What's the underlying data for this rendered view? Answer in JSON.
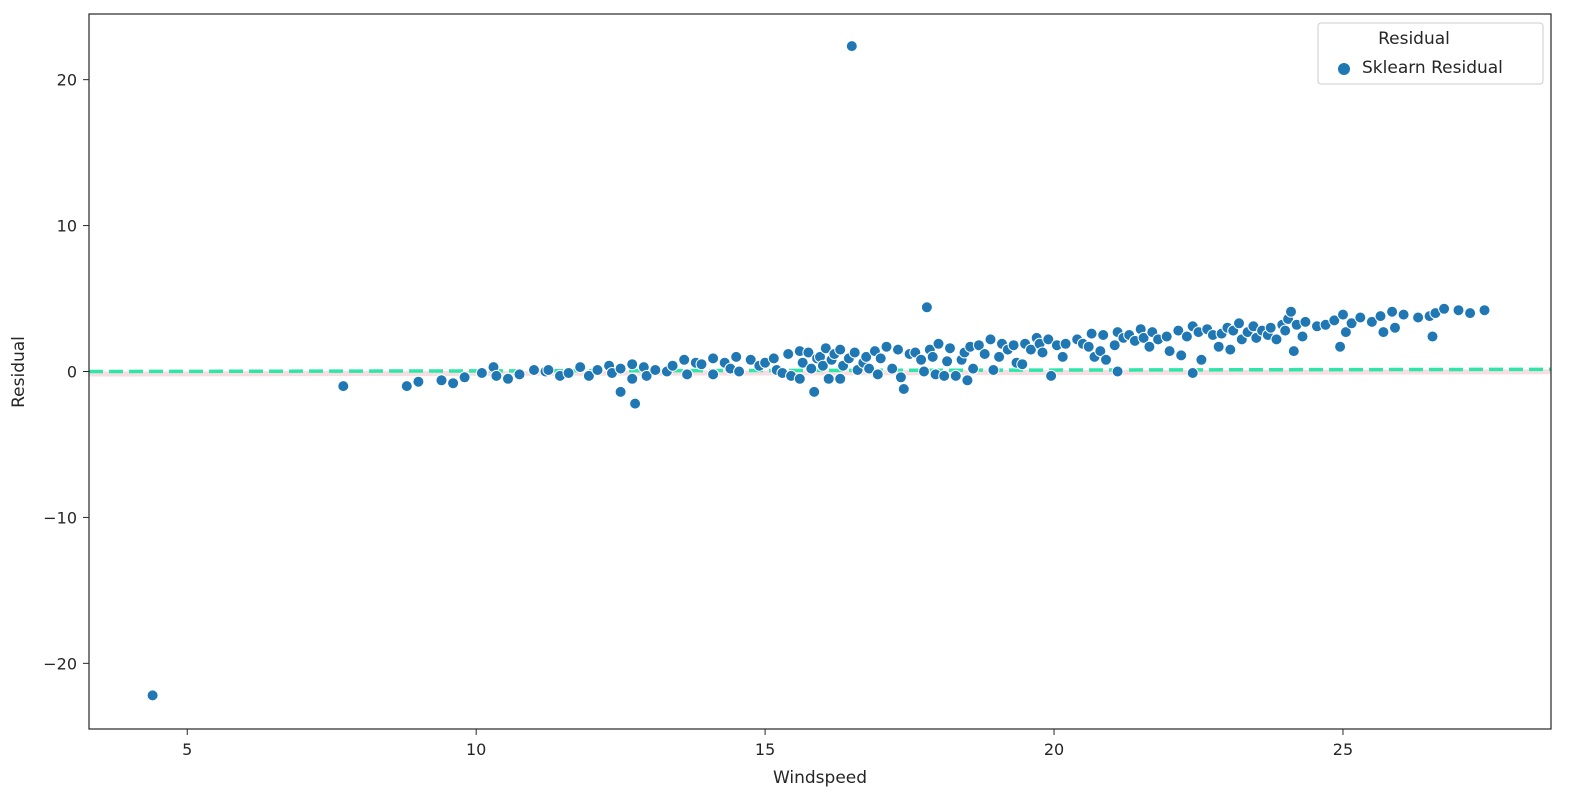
{
  "chart_data": {
    "type": "scatter",
    "xlabel": "Windspeed",
    "ylabel": "Residual",
    "xlim": [
      3.3,
      28.6
    ],
    "ylim": [
      -24.5,
      24.5
    ],
    "x_ticks": [
      5,
      10,
      15,
      20,
      25
    ],
    "y_ticks": [
      -20,
      -10,
      0,
      10,
      20
    ],
    "grid": false,
    "legend": {
      "title": "Residual",
      "placement": "top-right",
      "entries": [
        "Sklearn Residual"
      ]
    },
    "colors": {
      "points": "#1f77b4",
      "point_edge": "#ffffff",
      "zero_line": "#2ee6a8",
      "zero_line_shadow": "#e8a0b0",
      "axes": "#262626"
    },
    "reference_lines": [
      {
        "label": "zero",
        "y_start": 0.0,
        "y_end": 0.15
      }
    ],
    "series": [
      {
        "name": "Sklearn Residual",
        "points": [
          [
            4.4,
            -22.2
          ],
          [
            7.7,
            -1.0
          ],
          [
            8.8,
            -1.0
          ],
          [
            9.0,
            -0.7
          ],
          [
            9.4,
            -0.6
          ],
          [
            9.6,
            -0.8
          ],
          [
            9.8,
            -0.4
          ],
          [
            10.1,
            -0.1
          ],
          [
            10.3,
            0.3
          ],
          [
            10.35,
            -0.3
          ],
          [
            10.55,
            -0.5
          ],
          [
            10.75,
            -0.2
          ],
          [
            11.0,
            0.1
          ],
          [
            11.2,
            0.0
          ],
          [
            11.25,
            0.1
          ],
          [
            11.45,
            -0.3
          ],
          [
            11.6,
            -0.1
          ],
          [
            11.8,
            0.3
          ],
          [
            11.95,
            -0.3
          ],
          [
            12.1,
            0.1
          ],
          [
            12.3,
            0.4
          ],
          [
            12.35,
            -0.1
          ],
          [
            12.5,
            0.2
          ],
          [
            12.5,
            -1.4
          ],
          [
            12.7,
            0.5
          ],
          [
            12.75,
            -2.2
          ],
          [
            12.7,
            -0.5
          ],
          [
            12.9,
            0.3
          ],
          [
            12.95,
            -0.3
          ],
          [
            13.1,
            0.1
          ],
          [
            13.3,
            0.0
          ],
          [
            13.4,
            0.4
          ],
          [
            13.6,
            0.8
          ],
          [
            13.65,
            -0.2
          ],
          [
            13.8,
            0.6
          ],
          [
            13.9,
            0.5
          ],
          [
            14.1,
            0.9
          ],
          [
            14.1,
            -0.2
          ],
          [
            14.3,
            0.6
          ],
          [
            14.4,
            0.2
          ],
          [
            14.5,
            1.0
          ],
          [
            14.55,
            0.0
          ],
          [
            14.75,
            0.8
          ],
          [
            14.9,
            0.4
          ],
          [
            15.0,
            0.6
          ],
          [
            15.15,
            0.9
          ],
          [
            15.2,
            0.1
          ],
          [
            15.3,
            -0.1
          ],
          [
            15.4,
            1.2
          ],
          [
            15.45,
            -0.3
          ],
          [
            15.6,
            1.4
          ],
          [
            15.6,
            -0.5
          ],
          [
            15.65,
            0.6
          ],
          [
            15.75,
            1.3
          ],
          [
            15.8,
            0.2
          ],
          [
            15.85,
            -1.4
          ],
          [
            15.9,
            0.9
          ],
          [
            15.95,
            1.0
          ],
          [
            16.0,
            0.4
          ],
          [
            16.05,
            1.6
          ],
          [
            16.1,
            -0.5
          ],
          [
            16.15,
            0.8
          ],
          [
            16.2,
            1.2
          ],
          [
            16.3,
            -0.5
          ],
          [
            16.3,
            1.5
          ],
          [
            16.35,
            0.4
          ],
          [
            16.45,
            0.9
          ],
          [
            16.5,
            22.3
          ],
          [
            16.55,
            1.3
          ],
          [
            16.6,
            0.1
          ],
          [
            16.7,
            0.6
          ],
          [
            16.75,
            1.0
          ],
          [
            16.8,
            0.2
          ],
          [
            16.9,
            1.4
          ],
          [
            16.95,
            -0.2
          ],
          [
            17.0,
            0.9
          ],
          [
            17.1,
            1.7
          ],
          [
            17.2,
            0.2
          ],
          [
            17.3,
            1.5
          ],
          [
            17.35,
            -0.4
          ],
          [
            17.4,
            -1.2
          ],
          [
            17.5,
            1.2
          ],
          [
            17.6,
            1.3
          ],
          [
            17.7,
            0.8
          ],
          [
            17.75,
            0.0
          ],
          [
            17.8,
            4.4
          ],
          [
            17.85,
            1.5
          ],
          [
            17.9,
            1.0
          ],
          [
            17.95,
            -0.2
          ],
          [
            18.0,
            1.9
          ],
          [
            18.1,
            -0.3
          ],
          [
            18.15,
            0.7
          ],
          [
            18.2,
            1.6
          ],
          [
            18.3,
            -0.3
          ],
          [
            18.4,
            0.8
          ],
          [
            18.45,
            1.3
          ],
          [
            18.5,
            -0.6
          ],
          [
            18.55,
            1.7
          ],
          [
            18.6,
            0.2
          ],
          [
            18.7,
            1.8
          ],
          [
            18.8,
            1.2
          ],
          [
            18.9,
            2.2
          ],
          [
            18.95,
            0.1
          ],
          [
            19.05,
            1.0
          ],
          [
            19.1,
            1.9
          ],
          [
            19.2,
            1.5
          ],
          [
            19.3,
            1.8
          ],
          [
            19.35,
            0.6
          ],
          [
            19.45,
            0.5
          ],
          [
            19.5,
            1.9
          ],
          [
            19.6,
            1.5
          ],
          [
            19.7,
            2.3
          ],
          [
            19.75,
            1.9
          ],
          [
            19.8,
            1.3
          ],
          [
            19.9,
            2.2
          ],
          [
            19.95,
            -0.3
          ],
          [
            20.05,
            1.8
          ],
          [
            20.15,
            1.0
          ],
          [
            20.2,
            1.9
          ],
          [
            20.4,
            2.2
          ],
          [
            20.5,
            1.9
          ],
          [
            20.6,
            1.7
          ],
          [
            20.65,
            2.6
          ],
          [
            20.7,
            1.0
          ],
          [
            20.8,
            1.4
          ],
          [
            20.85,
            2.5
          ],
          [
            20.9,
            0.8
          ],
          [
            21.05,
            1.8
          ],
          [
            21.1,
            2.7
          ],
          [
            21.1,
            0.0
          ],
          [
            21.2,
            2.3
          ],
          [
            21.3,
            2.5
          ],
          [
            21.4,
            2.1
          ],
          [
            21.5,
            2.9
          ],
          [
            21.55,
            2.3
          ],
          [
            21.65,
            1.7
          ],
          [
            21.7,
            2.7
          ],
          [
            21.8,
            2.2
          ],
          [
            21.95,
            2.4
          ],
          [
            22.0,
            1.4
          ],
          [
            22.15,
            2.8
          ],
          [
            22.2,
            1.1
          ],
          [
            22.3,
            2.4
          ],
          [
            22.4,
            3.1
          ],
          [
            22.4,
            -0.1
          ],
          [
            22.5,
            2.7
          ],
          [
            22.55,
            0.8
          ],
          [
            22.65,
            2.9
          ],
          [
            22.75,
            2.5
          ],
          [
            22.85,
            1.7
          ],
          [
            22.9,
            2.6
          ],
          [
            23.0,
            3.0
          ],
          [
            23.05,
            1.5
          ],
          [
            23.1,
            2.8
          ],
          [
            23.2,
            3.3
          ],
          [
            23.25,
            2.2
          ],
          [
            23.35,
            2.7
          ],
          [
            23.45,
            3.1
          ],
          [
            23.5,
            2.3
          ],
          [
            23.6,
            2.8
          ],
          [
            23.7,
            2.5
          ],
          [
            23.75,
            3.0
          ],
          [
            23.85,
            2.2
          ],
          [
            23.95,
            3.2
          ],
          [
            24.0,
            2.8
          ],
          [
            24.05,
            3.6
          ],
          [
            24.1,
            4.1
          ],
          [
            24.15,
            1.4
          ],
          [
            24.2,
            3.2
          ],
          [
            24.3,
            2.4
          ],
          [
            24.35,
            3.4
          ],
          [
            24.55,
            3.1
          ],
          [
            24.7,
            3.2
          ],
          [
            24.85,
            3.5
          ],
          [
            24.95,
            1.7
          ],
          [
            25.0,
            3.9
          ],
          [
            25.05,
            2.7
          ],
          [
            25.15,
            3.3
          ],
          [
            25.3,
            3.7
          ],
          [
            25.5,
            3.4
          ],
          [
            25.65,
            3.8
          ],
          [
            25.7,
            2.7
          ],
          [
            25.85,
            4.1
          ],
          [
            25.9,
            3.0
          ],
          [
            26.05,
            3.9
          ],
          [
            26.3,
            3.7
          ],
          [
            26.5,
            3.8
          ],
          [
            26.55,
            2.4
          ],
          [
            26.6,
            4.0
          ],
          [
            26.75,
            4.3
          ],
          [
            27.0,
            4.2
          ],
          [
            27.2,
            4.0
          ],
          [
            27.45,
            4.2
          ]
        ]
      }
    ]
  }
}
